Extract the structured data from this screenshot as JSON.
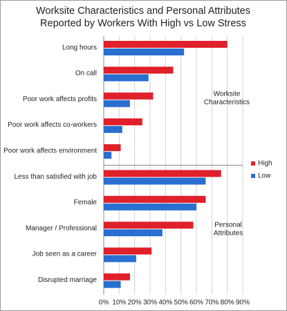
{
  "chart_data": {
    "type": "bar",
    "orientation": "horizontal",
    "title": [
      "Worksite Characteristics and Personal Attributes",
      "Reported by Workers With High vs Low  Stress"
    ],
    "categories": [
      "Long hours",
      "On call",
      "Poor work affects profits",
      "Poor work affects co-workers",
      "Poor work affects environment",
      "Less than satisfied with job",
      "Female",
      "Manager / Professional",
      "Job seen as a career",
      "Disrupted marriage"
    ],
    "series": [
      {
        "name": "High",
        "color": "#e0202a",
        "values": [
          80,
          45,
          32,
          25,
          11,
          76,
          66,
          58,
          31,
          17
        ]
      },
      {
        "name": "Low",
        "color": "#2a6fd0",
        "values": [
          52,
          29,
          17,
          12,
          5,
          66,
          60,
          38,
          21,
          11
        ]
      }
    ],
    "xlim": [
      0,
      90
    ],
    "xticks": [
      {
        "value": 0,
        "label": "0%"
      },
      {
        "value": 10,
        "label": "10%"
      },
      {
        "value": 20,
        "label": "20%"
      },
      {
        "value": 30,
        "label": "30%"
      },
      {
        "value": 40,
        "label": "40%"
      },
      {
        "value": 50,
        "label": "50%"
      },
      {
        "value": 60,
        "label": "60%"
      },
      {
        "value": 70,
        "label": "70%"
      },
      {
        "value": 80,
        "label": "80%"
      },
      {
        "value": 90,
        "label": "90%"
      }
    ],
    "grid": true,
    "legend": "right",
    "annotations": [
      [
        "Worksite",
        "Characteristics"
      ],
      [
        "Personal",
        "Attributes"
      ]
    ]
  }
}
